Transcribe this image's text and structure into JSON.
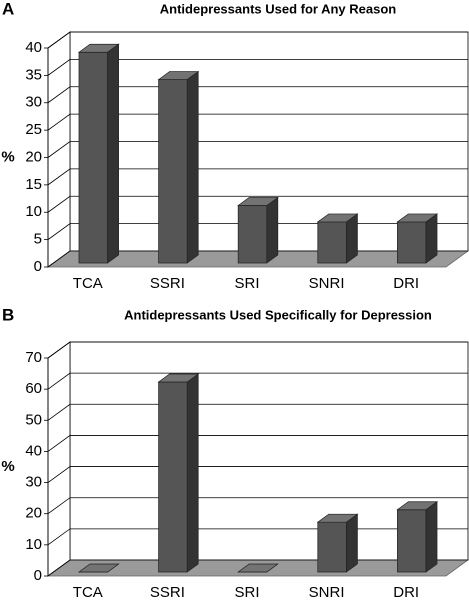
{
  "chart_data": [
    {
      "type": "bar3d",
      "panel_label": "A",
      "title": "Antidepressants Used for Any Reason",
      "y_label": "%",
      "categories": [
        "TCA",
        "SSRI",
        "SRI",
        "SNRI",
        "DRI"
      ],
      "values": [
        38.5,
        33.5,
        10.5,
        7.5,
        7.5
      ],
      "color": "#555555",
      "ylim": [
        0,
        40
      ],
      "yticks": [
        0,
        5,
        10,
        15,
        20,
        25,
        30,
        35,
        40
      ],
      "grid": true
    },
    {
      "type": "bar3d",
      "panel_label": "B",
      "title": "Antidepressants Used Specifically for Depression",
      "y_label": "%",
      "categories": [
        "TCA",
        "SSRI",
        "SRI",
        "SNRI",
        "DRI"
      ],
      "values": [
        0,
        61,
        0,
        16,
        20
      ],
      "color": "#555555",
      "ylim": [
        0,
        70
      ],
      "yticks": [
        0,
        10,
        20,
        30,
        40,
        50,
        60,
        70
      ],
      "grid": true
    }
  ]
}
